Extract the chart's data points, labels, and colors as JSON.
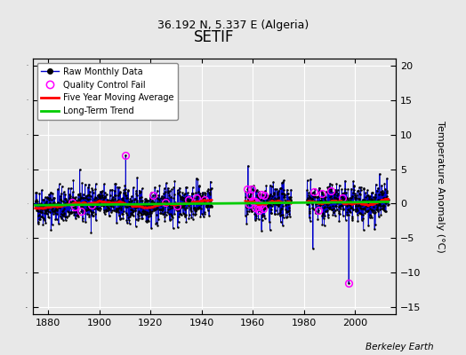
{
  "title": "SETIF",
  "subtitle": "36.192 N, 5.337 E (Algeria)",
  "ylabel_right": "Temperature Anomaly (°C)",
  "watermark": "Berkeley Earth",
  "xlim": [
    1874,
    2016
  ],
  "ylim": [
    -16,
    21
  ],
  "yticks": [
    -15,
    -10,
    -5,
    0,
    5,
    10,
    15,
    20
  ],
  "xticks": [
    1880,
    1900,
    1920,
    1940,
    1960,
    1980,
    2000
  ],
  "plot_bg": "#e8e8e8",
  "fig_bg": "#e8e8e8",
  "grid_color": "#ffffff",
  "raw_line_color": "#0000cc",
  "raw_dot_color": "#000000",
  "qc_fail_color": "#ff00ff",
  "moving_avg_color": "#ff0000",
  "trend_color": "#00cc00",
  "seed": 42,
  "x_start": 1875.0,
  "x_end": 2013.0,
  "gap1_start": 1944.0,
  "gap1_end": 1957.0,
  "gap2_start": 1975.0,
  "gap2_end": 1981.0,
  "title_fontsize": 12,
  "subtitle_fontsize": 9,
  "axis_fontsize": 8,
  "tick_fontsize": 8,
  "legend_fontsize": 7
}
